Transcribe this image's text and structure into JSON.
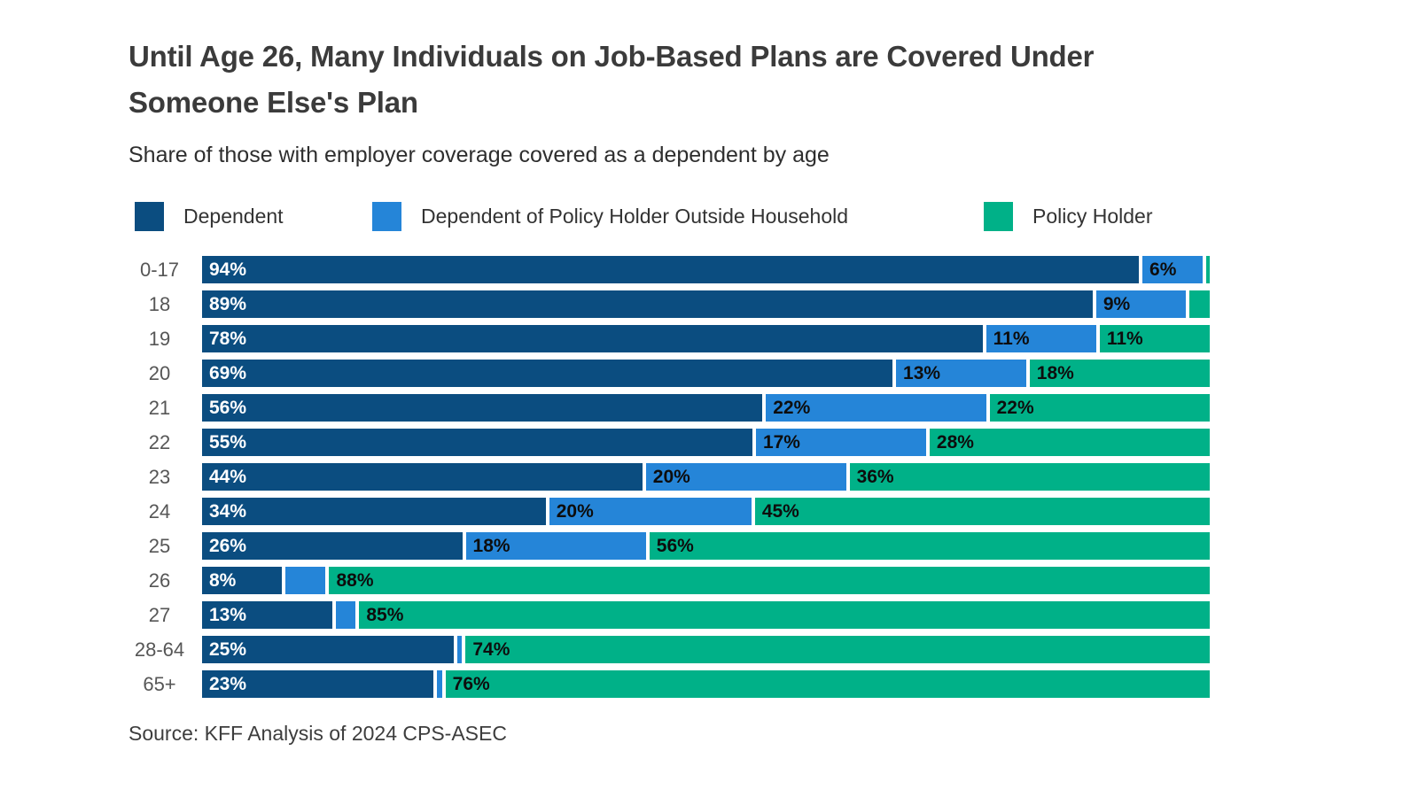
{
  "header": {
    "title_line1": "Until Age 26, Many Individuals on Job-Based Plans are Covered Under",
    "title_line2": "Someone Else's Plan",
    "subtitle": "Share of those with employer coverage covered as a dependent by age"
  },
  "source_note": "Source: KFF Analysis of 2024 CPS-ASEC",
  "chart_data": {
    "type": "bar",
    "orientation": "horizontal",
    "stacked": true,
    "title": "Until Age 26, Many Individuals on Job-Based Plans are Covered Under Someone Else's Plan",
    "subtitle": "Share of those with employer coverage covered as a dependent by age",
    "xlabel": "",
    "ylabel": "Age",
    "xlim": [
      0,
      100
    ],
    "grid": false,
    "legend_position": "top",
    "categories": [
      "0-17",
      "18",
      "19",
      "20",
      "21",
      "22",
      "23",
      "24",
      "25",
      "26",
      "27",
      "28-64",
      "65+"
    ],
    "series": [
      {
        "name": "Dependent",
        "color": "#0b4d80",
        "text_color": "#ffffff",
        "values": [
          94,
          89,
          78,
          69,
          56,
          55,
          44,
          34,
          26,
          8,
          13,
          25,
          23
        ],
        "labels": [
          "94%",
          "89%",
          "78%",
          "69%",
          "56%",
          "55%",
          "44%",
          "34%",
          "26%",
          "8%",
          "13%",
          "25%",
          "23%"
        ]
      },
      {
        "name": "Dependent of Policy Holder Outside Household",
        "color": "#2585d8",
        "text_color": "#0d0d0d",
        "values": [
          6,
          9,
          11,
          13,
          22,
          17,
          20,
          20,
          18,
          4,
          2,
          0.5,
          0.5
        ],
        "labels": [
          "6%",
          "9%",
          "11%",
          "13%",
          "22%",
          "17%",
          "20%",
          "20%",
          "18%",
          "",
          "",
          "",
          ""
        ]
      },
      {
        "name": "Policy Holder",
        "color": "#00b188",
        "text_color": "#0d0d0d",
        "values": [
          0.4,
          2,
          11,
          18,
          22,
          28,
          36,
          45,
          56,
          88,
          85,
          74,
          76
        ],
        "labels": [
          "",
          "",
          "11%",
          "18%",
          "22%",
          "28%",
          "36%",
          "45%",
          "56%",
          "88%",
          "85%",
          "74%",
          "76%"
        ]
      }
    ]
  }
}
